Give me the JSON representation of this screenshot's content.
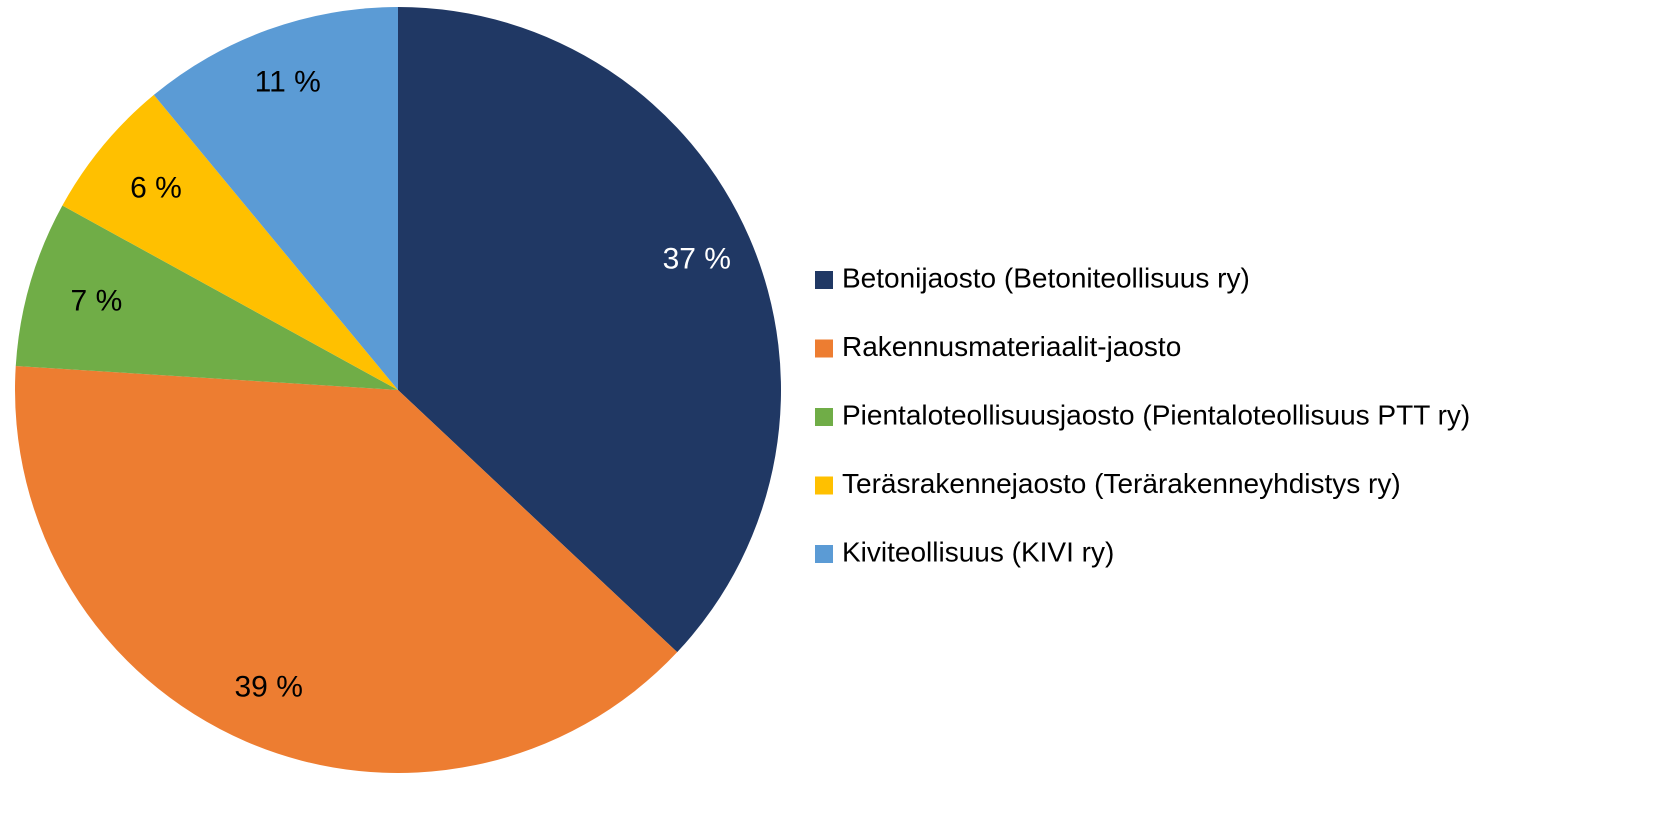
{
  "chart_data": {
    "type": "pie",
    "categories": [
      "Betonijaosto (Betoniteollisuus ry)",
      "Rakennusmateriaalit-jaosto",
      "Pientaloteollisuusjaosto (Pientaloteollisuus PTT ry)",
      "Teräsrakennejaosto (Terärakenneyhdistys ry)",
      "Kiviteollisuus (KIVI ry)"
    ],
    "values": [
      37,
      39,
      7,
      6,
      11
    ],
    "value_labels": [
      "37 %",
      "39 %",
      "7 %",
      "6 %",
      "11 %"
    ],
    "colors": [
      "#203864",
      "#ED7D31",
      "#70AD47",
      "#FFC000",
      "#5B9BD5"
    ],
    "legend": "right"
  }
}
